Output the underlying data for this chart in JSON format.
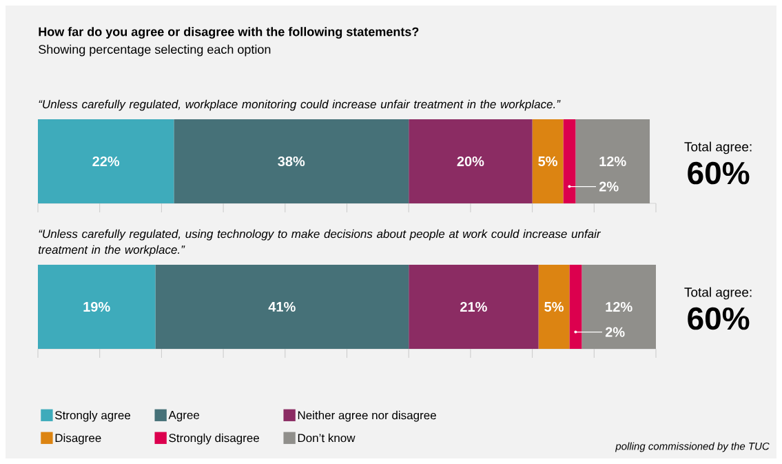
{
  "chart_data": [
    {
      "type": "bar",
      "orientation": "horizontal",
      "stacked": true,
      "title": "How far do you agree or disagree with the following statements?",
      "subtitle": "Showing percentage selecting each option",
      "categories": [
        null
      ],
      "xlim": [
        0,
        100
      ],
      "xticks": [
        {
          "value": 0,
          "label": null
        },
        {
          "value": 10,
          "label": null
        },
        {
          "value": 20,
          "label": null
        },
        {
          "value": 30,
          "label": null
        },
        {
          "value": 40,
          "label": null
        },
        {
          "value": 50,
          "label": null
        },
        {
          "value": 60,
          "label": null
        },
        {
          "value": 70,
          "label": null
        },
        {
          "value": 80,
          "label": null
        },
        {
          "value": 90,
          "label": null
        },
        {
          "value": 100,
          "label": null
        }
      ],
      "series": [
        {
          "color": "#3eabbb",
          "values": [
            22
          ],
          "value_labels": [
            "22%"
          ]
        },
        {
          "color": "#467178",
          "values": [
            38
          ],
          "value_labels": [
            "38%"
          ]
        },
        {
          "color": "#8b2c63",
          "values": [
            20
          ],
          "value_labels": [
            "20%"
          ]
        },
        {
          "color": "#dc8412",
          "values": [
            5
          ],
          "value_labels": [
            "5%"
          ]
        },
        {
          "color": "#dc004e",
          "values": [
            2
          ],
          "value_labels": [
            "2%"
          ]
        },
        {
          "color": "#908f8b",
          "values": [
            12
          ],
          "value_labels": [
            "12%"
          ]
        }
      ],
      "annotations": [
        "“Unless carefully regulated, workplace monitoring could increase unfair treatment in the workplace.”",
        "Total agree:",
        "60%"
      ]
    },
    {
      "type": "bar",
      "orientation": "horizontal",
      "stacked": true,
      "categories": [
        null
      ],
      "xlim": [
        0,
        100
      ],
      "xticks": [
        {
          "value": 0,
          "label": null
        },
        {
          "value": 10,
          "label": null
        },
        {
          "value": 20,
          "label": null
        },
        {
          "value": 30,
          "label": null
        },
        {
          "value": 40,
          "label": null
        },
        {
          "value": 50,
          "label": null
        },
        {
          "value": 60,
          "label": null
        },
        {
          "value": 70,
          "label": null
        },
        {
          "value": 80,
          "label": null
        },
        {
          "value": 90,
          "label": null
        },
        {
          "value": 100,
          "label": null
        }
      ],
      "series": [
        {
          "name": "Strongly agree",
          "color": "#3eabbb",
          "values": [
            19
          ],
          "value_labels": [
            "19%"
          ]
        },
        {
          "name": "Agree",
          "color": "#467178",
          "values": [
            41
          ],
          "value_labels": [
            "41%"
          ]
        },
        {
          "name": "Neither agree nor disagree",
          "color": "#8b2c63",
          "values": [
            21
          ],
          "value_labels": [
            "21%"
          ]
        },
        {
          "name": "Disagree",
          "color": "#dc8412",
          "values": [
            5
          ],
          "value_labels": [
            "5%"
          ]
        },
        {
          "name": "Strongly disagree",
          "color": "#dc004e",
          "values": [
            2
          ],
          "value_labels": [
            "2%"
          ]
        },
        {
          "name": "Don’t know",
          "color": "#908f8b",
          "values": [
            12
          ],
          "value_labels": [
            "12%"
          ]
        }
      ],
      "legend": "bottom",
      "annotations": [
        "“Unless carefully regulated, using technology to make decisions about people at work could increase unfair treatment in the workplace.”",
        "Total agree:",
        "60%",
        "polling commissioned by the TUC"
      ]
    }
  ]
}
